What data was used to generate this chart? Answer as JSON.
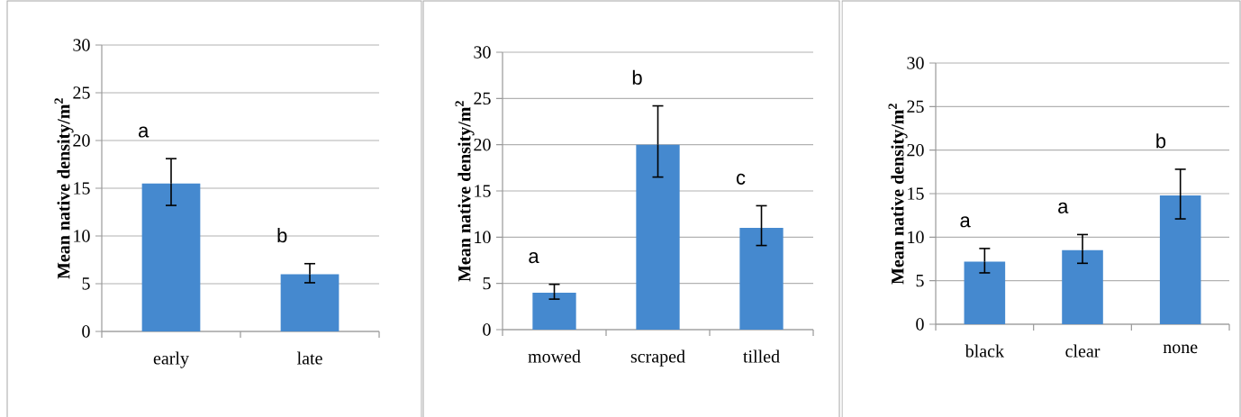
{
  "chart_data": [
    {
      "type": "bar",
      "categories": [
        "early",
        "late"
      ],
      "values": [
        15.5,
        6.0
      ],
      "errors": [
        [
          13.2,
          18.1
        ],
        [
          5.1,
          7.1
        ]
      ],
      "color": "#4589cf",
      "ylabel": "Mean native density/m$^{2}$",
      "ylim": [
        0,
        30
      ],
      "yticks": [
        0,
        5,
        10,
        15,
        20,
        25,
        30
      ],
      "grid": "y",
      "annotations": [
        "a",
        "b"
      ]
    },
    {
      "type": "bar",
      "categories": [
        "mowed",
        "scraped",
        "tilled"
      ],
      "values": [
        4.0,
        20.0,
        11.0
      ],
      "errors": [
        [
          3.3,
          4.9
        ],
        [
          16.5,
          24.2
        ],
        [
          9.1,
          13.4
        ]
      ],
      "color": "#4589cf",
      "ylabel": "Mean native density/m$^{2}$",
      "ylim": [
        0,
        30
      ],
      "yticks": [
        0,
        5,
        10,
        15,
        20,
        25,
        30
      ],
      "grid": "y",
      "annotations": [
        "a",
        "b",
        "c"
      ]
    },
    {
      "type": "bar",
      "categories": [
        "black",
        "clear",
        "none"
      ],
      "values": [
        7.2,
        8.5,
        14.8
      ],
      "errors": [
        [
          5.9,
          8.7
        ],
        [
          7.0,
          10.3
        ],
        [
          12.1,
          17.8
        ]
      ],
      "color": "#4589cf",
      "ylabel": "Mean native density/m$^{2}$",
      "ylim": [
        0,
        30
      ],
      "yticks": [
        0,
        5,
        10,
        15,
        20,
        25,
        30
      ],
      "grid": "y",
      "annotations": [
        "a",
        "a",
        "b"
      ]
    }
  ]
}
